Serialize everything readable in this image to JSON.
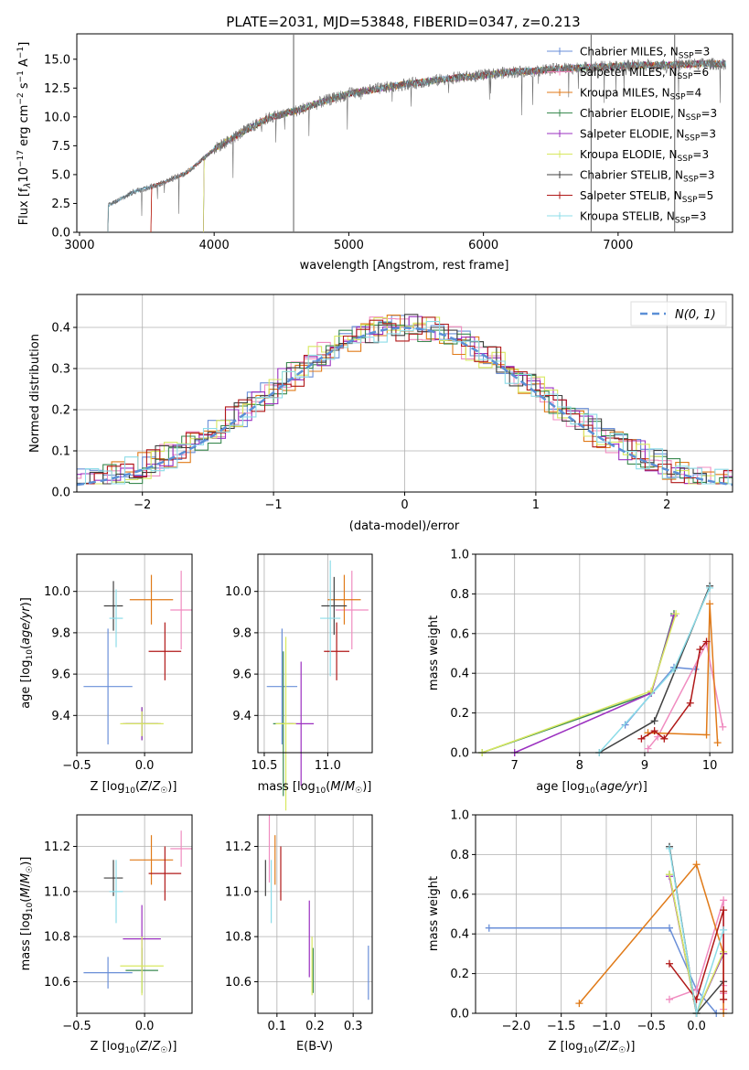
{
  "figure": {
    "title": "PLATE=2031, MJD=53848, FIBERID=0347, z=0.213"
  },
  "colors": {
    "chabrier_miles": "#6a8fd8",
    "salpeter_miles": "#f08cc0",
    "kroupa_miles": "#e07a18",
    "chabrier_elodie": "#3a8a50",
    "salpeter_elodie": "#9b30c0",
    "kroupa_elodie": "#d8e860",
    "chabrier_stelib": "#404040",
    "salpeter_stelib": "#b01818",
    "kroupa_stelib": "#8cdce8",
    "spectrum": "#707070",
    "grid": "#b0b0b0"
  },
  "chart_data": [
    {
      "id": "spectrum",
      "type": "line",
      "xlabel": "wavelength [Angstrom, rest frame]",
      "ylabel": "Flux [fλ10⁻¹⁷ erg cm⁻² s⁻¹ A⁻¹]",
      "xlim": [
        2980,
        7850
      ],
      "ylim": [
        0,
        17.2
      ],
      "xticks": [
        "3000",
        "4000",
        "5000",
        "6000",
        "7000"
      ],
      "xtick_values": [
        3000,
        4000,
        5000,
        6000,
        7000
      ],
      "yticks": [
        "0.0",
        "2.5",
        "5.0",
        "7.5",
        "10.0",
        "12.5",
        "15.0"
      ],
      "ytick_values": [
        0,
        2.5,
        5,
        7.5,
        10,
        12.5,
        15
      ],
      "grid": false,
      "legend_position": "right",
      "legend": [
        "Chabrier MILES, N_SSP=3",
        "Salpeter MILES, N_SSP=6",
        "Kroupa MILES, N_SSP=4",
        "Chabrier ELODIE, N_SSP=3",
        "Salpeter ELODIE, N_SSP=3",
        "Kroupa ELODIE, N_SSP=3",
        "Chabrier STELIB, N_SSP=3",
        "Salpeter STELIB, N_SSP=5",
        "Kroupa STELIB, N_SSP=3"
      ],
      "continuum": {
        "x": [
          3200,
          3400,
          3600,
          3800,
          4000,
          4200,
          4400,
          4600,
          4800,
          5000,
          5200,
          5400,
          5600,
          5800,
          6000,
          6200,
          6400,
          6600,
          6800,
          7000,
          7200,
          7400,
          7600
        ],
        "y": [
          2.2,
          3.5,
          4.2,
          5.2,
          7.2,
          8.6,
          9.9,
          10.5,
          11.3,
          12.0,
          12.4,
          12.8,
          13.1,
          13.4,
          13.6,
          13.9,
          14.0,
          14.2,
          14.3,
          14.4,
          14.5,
          14.5,
          14.6
        ]
      }
    },
    {
      "id": "residuals",
      "type": "histogram",
      "xlabel": "(data-model)/error",
      "ylabel": "Normed distribution",
      "xlim": [
        -2.5,
        2.5
      ],
      "ylim": [
        0,
        0.48
      ],
      "xticks": [
        "−2",
        "−1",
        "0",
        "1",
        "2"
      ],
      "xtick_values": [
        -2,
        -1,
        0,
        1,
        2
      ],
      "yticks": [
        "0.0",
        "0.1",
        "0.2",
        "0.3",
        "0.4"
      ],
      "ytick_values": [
        0,
        0.1,
        0.2,
        0.3,
        0.4
      ],
      "grid": true,
      "legend_position": "top-right",
      "legend": [
        "N(0, 1)"
      ],
      "bin_width": 0.1
    },
    {
      "id": "age_vs_Z",
      "type": "scatter",
      "xlabel": "Z [log10(Z/Z☉)]",
      "ylabel": "age  [log10(age/yr)]",
      "xlim": [
        -0.5,
        0.35
      ],
      "ylim": [
        9.22,
        10.18
      ],
      "xticks": [
        "−0.5",
        "0.0"
      ],
      "xtick_values": [
        -0.5,
        0.0
      ],
      "yticks": [
        "9.4",
        "9.6",
        "9.8",
        "10.0"
      ],
      "ytick_values": [
        9.4,
        9.6,
        9.8,
        10.0
      ],
      "grid": true,
      "points": [
        {
          "model": "chabrier_miles",
          "x": -0.27,
          "y": 9.54,
          "xerr": 0.18,
          "yerr": 0.28
        },
        {
          "model": "salpeter_miles",
          "x": 0.27,
          "y": 9.91,
          "xerr": 0.08,
          "yerr": 0.19
        },
        {
          "model": "kroupa_miles",
          "x": 0.05,
          "y": 9.96,
          "xerr": 0.16,
          "yerr": 0.12
        },
        {
          "model": "chabrier_elodie",
          "x": -0.02,
          "y": 9.36,
          "xerr": 0.12,
          "yerr": 0.08
        },
        {
          "model": "salpeter_elodie",
          "x": -0.02,
          "y": 9.36,
          "xerr": 0.14,
          "yerr": 0.08
        },
        {
          "model": "kroupa_elodie",
          "x": -0.02,
          "y": 9.36,
          "xerr": 0.16,
          "yerr": 0.06
        },
        {
          "model": "chabrier_stelib",
          "x": -0.23,
          "y": 9.93,
          "xerr": 0.07,
          "yerr": 0.12
        },
        {
          "model": "salpeter_stelib",
          "x": 0.15,
          "y": 9.71,
          "xerr": 0.12,
          "yerr": 0.14
        },
        {
          "model": "kroupa_stelib",
          "x": -0.21,
          "y": 9.87,
          "xerr": 0.05,
          "yerr": 0.14
        }
      ]
    },
    {
      "id": "age_vs_mass",
      "type": "scatter",
      "xlabel": "mass [log10(M/M☉)]",
      "ylabel": "",
      "xlim": [
        10.45,
        11.35
      ],
      "ylim": [
        9.22,
        10.18
      ],
      "xticks": [
        "10.5",
        "11.0"
      ],
      "xtick_values": [
        10.5,
        11.0
      ],
      "yticks": [
        "9.4",
        "9.6",
        "9.8",
        "10.0"
      ],
      "ytick_values": [
        9.4,
        9.6,
        9.8,
        10.0
      ],
      "grid": true,
      "points": [
        {
          "model": "chabrier_miles",
          "x": 10.64,
          "y": 9.54,
          "xerr": 0.12,
          "yerr": 0.28
        },
        {
          "model": "salpeter_miles",
          "x": 11.19,
          "y": 9.91,
          "xerr": 0.13,
          "yerr": 0.19
        },
        {
          "model": "kroupa_miles",
          "x": 11.13,
          "y": 9.96,
          "xerr": 0.13,
          "yerr": 0.12
        },
        {
          "model": "chabrier_elodie",
          "x": 10.65,
          "y": 9.36,
          "xerr": 0.08,
          "yerr": 0.35
        },
        {
          "model": "salpeter_elodie",
          "x": 10.79,
          "y": 9.36,
          "xerr": 0.1,
          "yerr": 0.3
        },
        {
          "model": "kroupa_elodie",
          "x": 10.67,
          "y": 9.36,
          "xerr": 0.08,
          "yerr": 0.42
        },
        {
          "model": "chabrier_stelib",
          "x": 11.05,
          "y": 9.93,
          "xerr": 0.1,
          "yerr": 0.14
        },
        {
          "model": "salpeter_stelib",
          "x": 11.07,
          "y": 9.71,
          "xerr": 0.1,
          "yerr": 0.14
        },
        {
          "model": "kroupa_stelib",
          "x": 11.02,
          "y": 9.87,
          "xerr": 0.08,
          "yerr": 0.28
        }
      ]
    },
    {
      "id": "weight_vs_age",
      "type": "line",
      "xlabel": "age  [log10(age/yr)]",
      "ylabel": "mass weight",
      "xlim": [
        6.4,
        10.35
      ],
      "ylim": [
        0,
        1.0
      ],
      "xticks": [
        "7",
        "8",
        "9",
        "10"
      ],
      "xtick_values": [
        7,
        8,
        9,
        10
      ],
      "yticks": [
        "0.0",
        "0.2",
        "0.4",
        "0.6",
        "0.8",
        "1.0"
      ],
      "ytick_values": [
        0,
        0.2,
        0.4,
        0.6,
        0.8,
        1.0
      ],
      "grid": true,
      "series": [
        {
          "model": "chabrier_miles",
          "x": [
            8.7,
            9.45,
            9.78
          ],
          "y": [
            0.14,
            0.43,
            0.42
          ]
        },
        {
          "model": "salpeter_miles",
          "x": [
            9.05,
            9.2,
            9.95,
            10.2
          ],
          "y": [
            0.02,
            0.08,
            0.55,
            0.13
          ]
        },
        {
          "model": "kroupa_miles",
          "x": [
            9.05,
            9.95,
            10.0,
            10.12
          ],
          "y": [
            0.1,
            0.09,
            0.75,
            0.05
          ]
        },
        {
          "model": "chabrier_elodie",
          "x": [
            6.5,
            9.1,
            9.45
          ],
          "y": [
            0.0,
            0.3,
            0.7
          ]
        },
        {
          "model": "salpeter_elodie",
          "x": [
            7.0,
            9.1,
            9.45
          ],
          "y": [
            0.0,
            0.3,
            0.69
          ]
        },
        {
          "model": "kroupa_elodie",
          "x": [
            6.5,
            9.1,
            9.48
          ],
          "y": [
            0.0,
            0.31,
            0.7
          ]
        },
        {
          "model": "chabrier_stelib",
          "x": [
            8.3,
            9.15,
            10.0
          ],
          "y": [
            0.0,
            0.16,
            0.84
          ]
        },
        {
          "model": "salpeter_stelib",
          "x": [
            8.95,
            9.15,
            9.3,
            9.7,
            9.85,
            9.95
          ],
          "y": [
            0.07,
            0.11,
            0.07,
            0.25,
            0.52,
            0.56
          ]
        },
        {
          "model": "kroupa_stelib",
          "x": [
            8.3,
            9.45,
            10.0
          ],
          "y": [
            0.0,
            0.42,
            0.83
          ]
        }
      ]
    },
    {
      "id": "mass_vs_Z",
      "type": "scatter",
      "xlabel": "Z [log10(Z/Z☉)]",
      "ylabel": "mass [log10(M/M☉)]",
      "xlim": [
        -0.5,
        0.35
      ],
      "ylim": [
        10.46,
        11.34
      ],
      "xticks": [
        "−0.5",
        "0.0"
      ],
      "xtick_values": [
        -0.5,
        0.0
      ],
      "yticks": [
        "10.6",
        "10.8",
        "11.0",
        "11.2"
      ],
      "ytick_values": [
        10.6,
        10.8,
        11.0,
        11.2
      ],
      "grid": true,
      "points": [
        {
          "model": "chabrier_miles",
          "x": -0.27,
          "y": 10.64,
          "xerr": 0.18,
          "yerr": 0.07
        },
        {
          "model": "salpeter_miles",
          "x": 0.27,
          "y": 11.19,
          "xerr": 0.08,
          "yerr": 0.08
        },
        {
          "model": "kroupa_miles",
          "x": 0.05,
          "y": 11.14,
          "xerr": 0.16,
          "yerr": 0.11
        },
        {
          "model": "chabrier_elodie",
          "x": -0.02,
          "y": 10.65,
          "xerr": 0.12,
          "yerr": 0.1
        },
        {
          "model": "salpeter_elodie",
          "x": -0.02,
          "y": 10.79,
          "xerr": 0.14,
          "yerr": 0.15
        },
        {
          "model": "kroupa_elodie",
          "x": -0.02,
          "y": 10.67,
          "xerr": 0.16,
          "yerr": 0.13
        },
        {
          "model": "chabrier_stelib",
          "x": -0.23,
          "y": 11.06,
          "xerr": 0.07,
          "yerr": 0.08
        },
        {
          "model": "salpeter_stelib",
          "x": 0.15,
          "y": 11.08,
          "xerr": 0.12,
          "yerr": 0.12
        },
        {
          "model": "kroupa_stelib",
          "x": -0.21,
          "y": 11.0,
          "xerr": 0.05,
          "yerr": 0.14
        }
      ]
    },
    {
      "id": "mass_vs_ebv",
      "type": "scatter",
      "xlabel": "E(B-V)",
      "ylabel": "",
      "xlim": [
        0.05,
        0.35
      ],
      "ylim": [
        10.46,
        11.34
      ],
      "xticks": [
        "0.1",
        "0.2",
        "0.3"
      ],
      "xtick_values": [
        0.1,
        0.2,
        0.3
      ],
      "yticks": [
        "10.6",
        "10.8",
        "11.0",
        "11.2"
      ],
      "ytick_values": [
        10.6,
        10.8,
        11.0,
        11.2
      ],
      "grid": true,
      "points": [
        {
          "model": "chabrier_miles",
          "x": 0.34,
          "y": 10.64,
          "xerr": 0,
          "yerr": 0.12
        },
        {
          "model": "salpeter_miles",
          "x": 0.08,
          "y": 11.19,
          "xerr": 0,
          "yerr": 0.15
        },
        {
          "model": "kroupa_miles",
          "x": 0.095,
          "y": 11.14,
          "xerr": 0,
          "yerr": 0.11
        },
        {
          "model": "chabrier_elodie",
          "x": 0.195,
          "y": 10.65,
          "xerr": 0,
          "yerr": 0.1
        },
        {
          "model": "salpeter_elodie",
          "x": 0.185,
          "y": 10.79,
          "xerr": 0,
          "yerr": 0.17
        },
        {
          "model": "kroupa_elodie",
          "x": 0.192,
          "y": 10.67,
          "xerr": 0,
          "yerr": 0.13
        },
        {
          "model": "chabrier_stelib",
          "x": 0.07,
          "y": 11.06,
          "xerr": 0,
          "yerr": 0.08
        },
        {
          "model": "salpeter_stelib",
          "x": 0.11,
          "y": 11.08,
          "xerr": 0,
          "yerr": 0.12
        },
        {
          "model": "kroupa_stelib",
          "x": 0.085,
          "y": 11.0,
          "xerr": 0,
          "yerr": 0.14
        }
      ]
    },
    {
      "id": "weight_vs_Z",
      "type": "line",
      "xlabel": "Z [log10(Z/Z☉)]",
      "ylabel": "mass weight",
      "xlim": [
        -2.45,
        0.4
      ],
      "ylim": [
        0,
        1.0
      ],
      "xticks": [
        "−2.0",
        "−1.5",
        "−1.0",
        "−0.5",
        "0.0"
      ],
      "xtick_values": [
        -2.0,
        -1.5,
        -1.0,
        -0.5,
        0.0
      ],
      "yticks": [
        "0.0",
        "0.2",
        "0.4",
        "0.6",
        "0.8",
        "1.0"
      ],
      "ytick_values": [
        0,
        0.2,
        0.4,
        0.6,
        0.8,
        1.0
      ],
      "grid": true,
      "series": [
        {
          "model": "chabrier_miles",
          "x": [
            -2.3,
            -0.3,
            0.0,
            0.22
          ],
          "y": [
            0.43,
            0.43,
            0.12,
            0.0
          ]
        },
        {
          "model": "salpeter_miles",
          "x": [
            -0.3,
            0.0,
            0.3,
            0.3,
            0.3,
            0.3
          ],
          "y": [
            0.07,
            0.12,
            0.57,
            0.14,
            0.1,
            0.02
          ]
        },
        {
          "model": "kroupa_miles",
          "x": [
            -1.3,
            0.0,
            0.3,
            0.3
          ],
          "y": [
            0.05,
            0.75,
            0.3,
            0.0
          ]
        },
        {
          "model": "chabrier_elodie",
          "x": [
            -0.3,
            0.0,
            0.3
          ],
          "y": [
            0.7,
            0.0,
            0.3
          ]
        },
        {
          "model": "salpeter_elodie",
          "x": [
            -0.3,
            0.0,
            0.3
          ],
          "y": [
            0.69,
            0.0,
            0.3
          ]
        },
        {
          "model": "kroupa_elodie",
          "x": [
            -0.3,
            0.0,
            0.3
          ],
          "y": [
            0.7,
            0.0,
            0.31
          ]
        },
        {
          "model": "chabrier_stelib",
          "x": [
            -0.3,
            0.0,
            0.3
          ],
          "y": [
            0.84,
            0.0,
            0.16
          ]
        },
        {
          "model": "salpeter_stelib",
          "x": [
            -0.3,
            0.0,
            0.3,
            0.3,
            0.3
          ],
          "y": [
            0.25,
            0.07,
            0.52,
            0.11,
            0.07
          ]
        },
        {
          "model": "kroupa_stelib",
          "x": [
            -0.3,
            0.0,
            0.3
          ],
          "y": [
            0.83,
            0.0,
            0.42
          ]
        }
      ]
    }
  ]
}
